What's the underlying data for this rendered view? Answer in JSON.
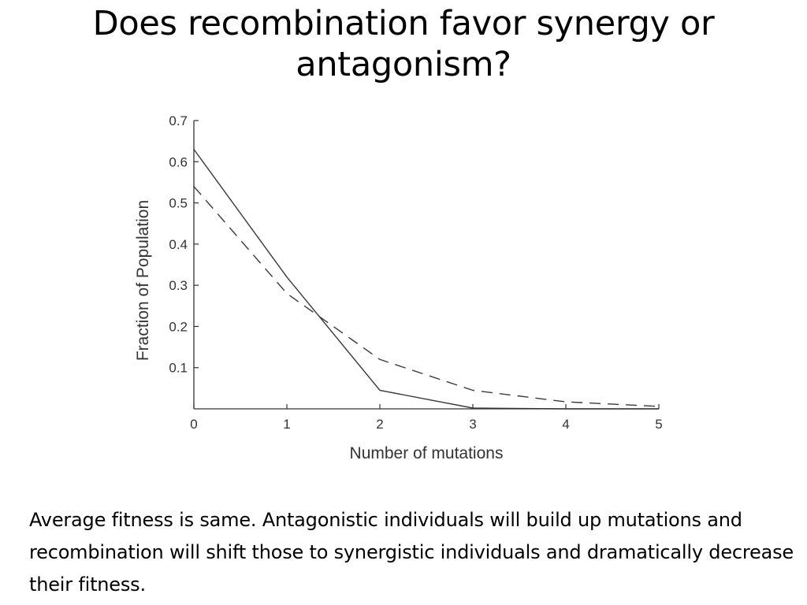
{
  "slide": {
    "title": "Does recombination favor synergy or antagonism?",
    "caption": "Average fitness is same. Antagonistic individuals will build up mutations and recombination will shift those to synergistic individuals and dramatically decrease their fitness."
  },
  "chart_data": {
    "type": "line",
    "title": "",
    "xlabel": "Number of mutations",
    "ylabel": "Fraction of Population",
    "xlim": [
      0,
      5
    ],
    "ylim": [
      0,
      0.7
    ],
    "x_ticks": [
      "0",
      "1",
      "2",
      "3",
      "4",
      "5"
    ],
    "y_ticks": [
      "0.1",
      "0.2",
      "0.3",
      "0.4",
      "0.5",
      "0.6",
      "0.7"
    ],
    "grid": false,
    "legend": "none",
    "series": [
      {
        "style": "solid",
        "x": [
          0,
          1,
          2,
          3,
          4,
          5
        ],
        "values": [
          0.63,
          0.32,
          0.045,
          0.002,
          0.0,
          0.0
        ]
      },
      {
        "style": "dashed",
        "x": [
          0,
          1,
          2,
          3,
          4,
          5
        ],
        "values": [
          0.54,
          0.28,
          0.12,
          0.045,
          0.017,
          0.006
        ]
      }
    ],
    "colors": {
      "line": "#3a3a3a",
      "axis": "#333333"
    }
  }
}
